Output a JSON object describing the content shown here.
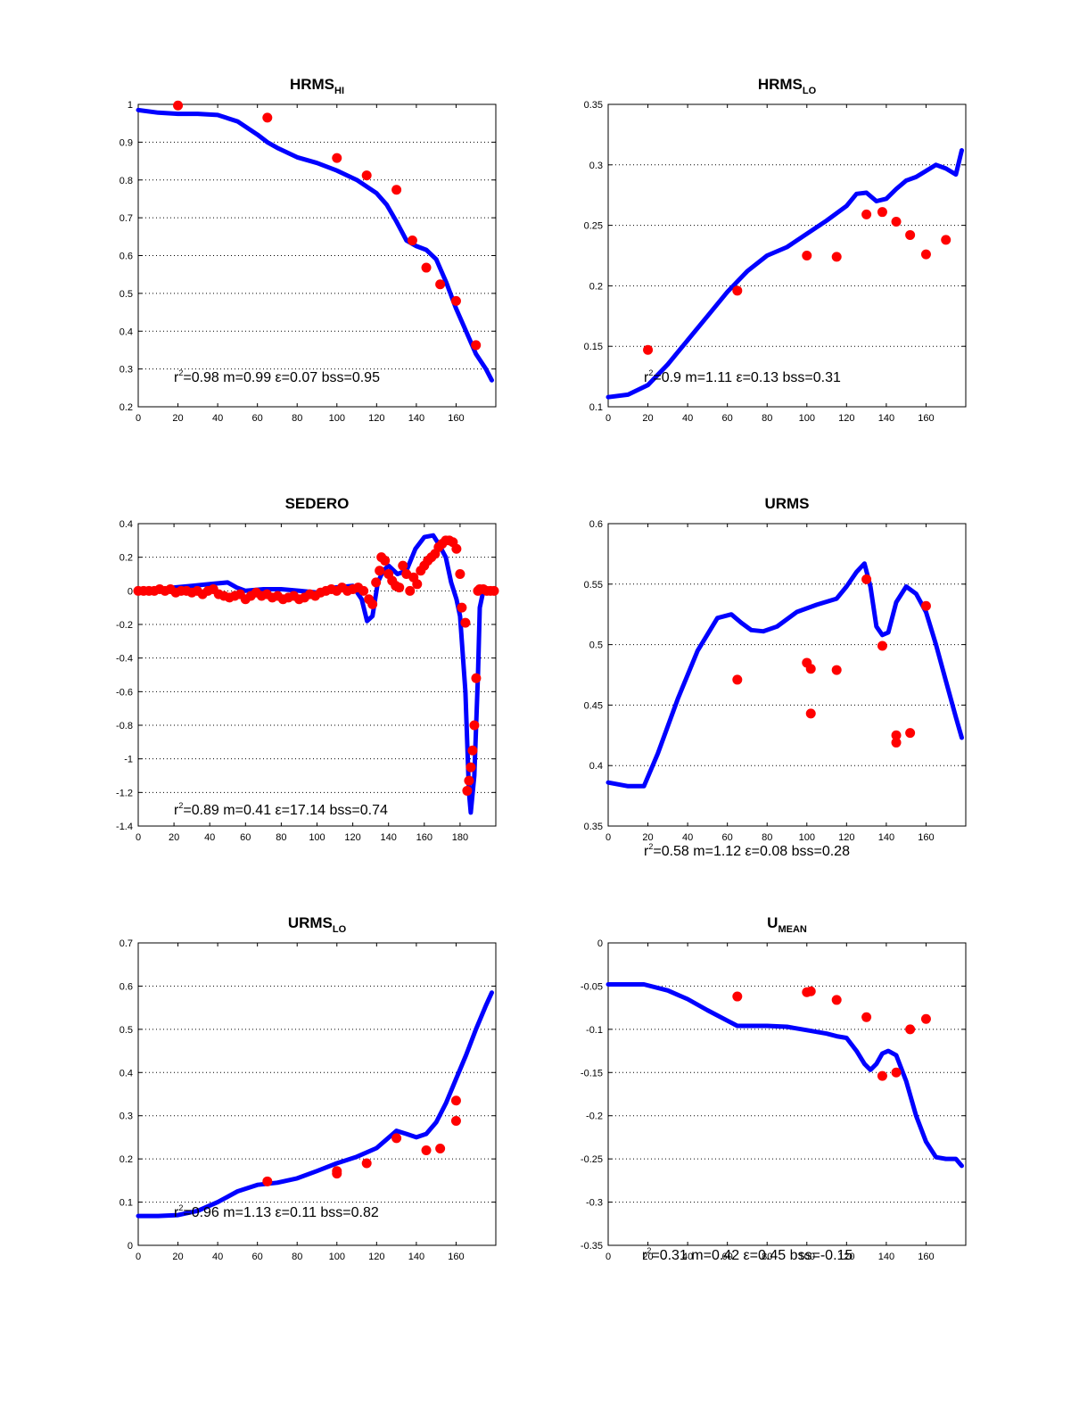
{
  "style": {
    "model_color": "#0000ff",
    "obs_color": "#ff0000",
    "grid_color": "#000000",
    "background": "#ffffff"
  },
  "chart_data": [
    {
      "type": "line",
      "title": "HRMS",
      "title_sub": "HI",
      "xlim": [
        0,
        180
      ],
      "ylim": [
        0.2,
        1
      ],
      "xticks": [
        "0",
        "20",
        "40",
        "60",
        "80",
        "100",
        "120",
        "140",
        "160"
      ],
      "yticks": [
        "0.2",
        "0.3",
        "0.4",
        "0.5",
        "0.6",
        "0.7",
        "0.8",
        "0.9",
        "1"
      ],
      "grid": "horizontal-dotted",
      "stats": {
        "r2_label": "r",
        "r2_sup": "2",
        "text": "=0.98 m=0.99 ε=0.07 bss=0.95"
      },
      "series": [
        {
          "kind": "model-line",
          "x": [
            0,
            10,
            20,
            30,
            40,
            50,
            60,
            65,
            70,
            80,
            90,
            100,
            110,
            120,
            125,
            130,
            135,
            140,
            145,
            150,
            155,
            160,
            165,
            170,
            175,
            178
          ],
          "y": [
            0.985,
            0.978,
            0.975,
            0.975,
            0.972,
            0.955,
            0.92,
            0.9,
            0.885,
            0.86,
            0.845,
            0.825,
            0.8,
            0.765,
            0.735,
            0.69,
            0.64,
            0.625,
            0.615,
            0.59,
            0.53,
            0.46,
            0.4,
            0.34,
            0.3,
            0.27
          ]
        },
        {
          "kind": "obs-points",
          "x": [
            20,
            65,
            100,
            115,
            130,
            138,
            145,
            152,
            160,
            170
          ],
          "y": [
            0.997,
            0.965,
            0.858,
            0.812,
            0.774,
            0.64,
            0.568,
            0.524,
            0.48,
            0.363
          ]
        }
      ]
    },
    {
      "type": "line",
      "title": "HRMS",
      "title_sub": "LO",
      "xlim": [
        0,
        180
      ],
      "ylim": [
        0.1,
        0.35
      ],
      "xticks": [
        "0",
        "20",
        "40",
        "60",
        "80",
        "100",
        "120",
        "140",
        "160"
      ],
      "yticks": [
        "0.1",
        "0.15",
        "0.2",
        "0.25",
        "0.3",
        "0.35"
      ],
      "grid": "horizontal-dotted",
      "stats": {
        "r2_label": "r",
        "r2_sup": "2",
        "text": "=0.9 m=1.11 ε=0.13 bss=0.31"
      },
      "series": [
        {
          "kind": "model-line",
          "x": [
            0,
            10,
            20,
            30,
            40,
            50,
            60,
            70,
            80,
            90,
            100,
            110,
            120,
            125,
            130,
            135,
            140,
            145,
            150,
            155,
            160,
            165,
            170,
            175,
            178
          ],
          "y": [
            0.108,
            0.11,
            0.118,
            0.135,
            0.155,
            0.175,
            0.195,
            0.212,
            0.225,
            0.232,
            0.243,
            0.254,
            0.266,
            0.276,
            0.277,
            0.27,
            0.272,
            0.28,
            0.287,
            0.29,
            0.295,
            0.3,
            0.297,
            0.292,
            0.312
          ]
        },
        {
          "kind": "obs-points",
          "x": [
            20,
            65,
            100,
            115,
            130,
            138,
            145,
            152,
            160,
            170
          ],
          "y": [
            0.147,
            0.196,
            0.225,
            0.224,
            0.259,
            0.261,
            0.253,
            0.242,
            0.226,
            0.238
          ]
        }
      ]
    },
    {
      "type": "line",
      "title": "SEDERO",
      "title_sub": "",
      "xlim": [
        0,
        200
      ],
      "ylim": [
        -1.4,
        0.4
      ],
      "xticks": [
        "0",
        "20",
        "40",
        "60",
        "80",
        "100",
        "120",
        "140",
        "160",
        "180"
      ],
      "yticks": [
        "-1.4",
        "-1.2",
        "-1",
        "-0.8",
        "-0.6",
        "-0.4",
        "-0.2",
        "0",
        "0.2",
        "0.4"
      ],
      "grid": "horizontal-dotted",
      "stats": {
        "r2_label": "r",
        "r2_sup": "2",
        "text": "=0.89 m=0.41 ε=17.14 bss=0.74"
      },
      "series": [
        {
          "kind": "model-line",
          "x": [
            0,
            10,
            20,
            30,
            40,
            50,
            55,
            60,
            70,
            80,
            90,
            100,
            110,
            120,
            125,
            128,
            131,
            134,
            137,
            140,
            145,
            150,
            155,
            160,
            165,
            168,
            172,
            175,
            178,
            180,
            183,
            185,
            186,
            188,
            190,
            191,
            193,
            195,
            200
          ],
          "y": [
            0,
            0,
            0.02,
            0.03,
            0.04,
            0.05,
            0.02,
            0,
            0.01,
            0.01,
            0,
            -0.01,
            0.02,
            0.03,
            -0.05,
            -0.18,
            -0.15,
            0.05,
            0.12,
            0.15,
            0.1,
            0.12,
            0.25,
            0.32,
            0.33,
            0.28,
            0.2,
            0.05,
            -0.05,
            -0.15,
            -0.6,
            -1.2,
            -1.32,
            -1.1,
            -0.5,
            -0.1,
            0,
            0,
            0
          ]
        },
        {
          "kind": "obs-points",
          "x": [
            0,
            3,
            6,
            9,
            12,
            15,
            18,
            21,
            24,
            27,
            30,
            33,
            36,
            39,
            42,
            45,
            48,
            51,
            54,
            57,
            60,
            63,
            66,
            69,
            72,
            75,
            78,
            81,
            84,
            87,
            90,
            93,
            96,
            99,
            102,
            105,
            108,
            111,
            114,
            117,
            120,
            123,
            126,
            129,
            131,
            133,
            135,
            136,
            138,
            140,
            142,
            144,
            146,
            148,
            150,
            152,
            154,
            156,
            158,
            160,
            162,
            164,
            166,
            168,
            170,
            172,
            174,
            176,
            178,
            180,
            181,
            183,
            184,
            185,
            186,
            187,
            188,
            189,
            190,
            191,
            193,
            195,
            197,
            199
          ],
          "y": [
            0,
            0,
            0,
            0,
            0.01,
            0,
            0.01,
            -0.01,
            0,
            0,
            -0.01,
            0,
            -0.02,
            0,
            0.01,
            -0.02,
            -0.03,
            -0.04,
            -0.03,
            -0.02,
            -0.05,
            -0.03,
            -0.01,
            -0.03,
            -0.02,
            -0.04,
            -0.03,
            -0.05,
            -0.04,
            -0.03,
            -0.05,
            -0.04,
            -0.02,
            -0.03,
            -0.01,
            0,
            0.01,
            0,
            0.02,
            0,
            0.01,
            0.02,
            0,
            -0.05,
            -0.08,
            0.05,
            0.12,
            0.2,
            0.18,
            0.1,
            0.06,
            0.03,
            0.02,
            0.15,
            0.1,
            0.0,
            0.08,
            0.04,
            0.12,
            0.15,
            0.18,
            0.2,
            0.22,
            0.26,
            0.28,
            0.3,
            0.3,
            0.29,
            0.25,
            0.1,
            -0.1,
            -0.19,
            -1.19,
            -1.13,
            -1.05,
            -0.95,
            -0.8,
            -0.52,
            0,
            0.01,
            0.01,
            0,
            0,
            0
          ]
        }
      ]
    },
    {
      "type": "line",
      "title": "URMS",
      "title_sub": "",
      "xlim": [
        0,
        180
      ],
      "ylim": [
        0.35,
        0.6
      ],
      "xticks": [
        "0",
        "20",
        "40",
        "60",
        "80",
        "100",
        "120",
        "140",
        "160"
      ],
      "yticks": [
        "0.35",
        "0.4",
        "0.45",
        "0.5",
        "0.55",
        "0.6"
      ],
      "grid": "horizontal-dotted",
      "stats": {
        "r2_label": "r",
        "r2_sup": "2",
        "text": "=0.58 m=1.12 ε=0.08 bss=0.28"
      },
      "series": [
        {
          "kind": "model-line",
          "x": [
            0,
            10,
            18,
            25,
            35,
            45,
            55,
            62,
            67,
            72,
            78,
            85,
            95,
            105,
            115,
            120,
            125,
            129,
            132,
            135,
            138,
            141,
            145,
            150,
            155,
            160,
            165,
            170,
            175,
            178
          ],
          "y": [
            0.386,
            0.383,
            0.383,
            0.41,
            0.455,
            0.495,
            0.522,
            0.525,
            0.518,
            0.512,
            0.511,
            0.515,
            0.527,
            0.533,
            0.538,
            0.548,
            0.56,
            0.567,
            0.548,
            0.515,
            0.508,
            0.51,
            0.535,
            0.548,
            0.542,
            0.527,
            0.5,
            0.47,
            0.44,
            0.423
          ]
        },
        {
          "kind": "obs-points",
          "x": [
            65,
            100,
            102,
            102,
            115,
            130,
            138,
            145,
            145,
            152,
            160
          ],
          "y": [
            0.471,
            0.485,
            0.48,
            0.443,
            0.479,
            0.554,
            0.499,
            0.425,
            0.419,
            0.427,
            0.532
          ]
        }
      ]
    },
    {
      "type": "line",
      "title": "URMS",
      "title_sub": "LO",
      "xlim": [
        0,
        180
      ],
      "ylim": [
        0,
        0.7
      ],
      "xticks": [
        "0",
        "20",
        "40",
        "60",
        "80",
        "100",
        "120",
        "140",
        "160"
      ],
      "yticks": [
        "0",
        "0.1",
        "0.2",
        "0.3",
        "0.4",
        "0.5",
        "0.6",
        "0.7"
      ],
      "grid": "horizontal-dotted",
      "stats": {
        "r2_label": "r",
        "r2_sup": "2",
        "text": "=0.96 m=1.13 ε=0.11 bss=0.82"
      },
      "series": [
        {
          "kind": "model-line",
          "x": [
            0,
            10,
            20,
            30,
            40,
            50,
            60,
            70,
            80,
            90,
            100,
            110,
            120,
            125,
            130,
            135,
            140,
            145,
            150,
            155,
            160,
            165,
            170,
            175,
            178
          ],
          "y": [
            0.068,
            0.068,
            0.07,
            0.08,
            0.1,
            0.125,
            0.14,
            0.145,
            0.155,
            0.172,
            0.19,
            0.205,
            0.225,
            0.245,
            0.265,
            0.258,
            0.25,
            0.258,
            0.285,
            0.33,
            0.385,
            0.44,
            0.5,
            0.555,
            0.585
          ]
        },
        {
          "kind": "obs-points",
          "x": [
            65,
            100,
            100,
            115,
            130,
            145,
            152,
            160,
            160
          ],
          "y": [
            0.148,
            0.172,
            0.166,
            0.19,
            0.248,
            0.22,
            0.224,
            0.335,
            0.288
          ]
        }
      ]
    },
    {
      "type": "line",
      "title": "U",
      "title_sub": "MEAN",
      "xlim": [
        0,
        180
      ],
      "ylim": [
        -0.35,
        0
      ],
      "xticks": [
        "0",
        "20",
        "40",
        "60",
        "80",
        "100",
        "120",
        "140",
        "160"
      ],
      "yticks": [
        "-0.35",
        "-0.3",
        "-0.25",
        "-0.2",
        "-0.15",
        "-0.1",
        "-0.05",
        "0"
      ],
      "grid": "horizontal-dotted",
      "stats": {
        "r2_label": "r",
        "r2_sup": "2",
        "text": "=0.31 m=0.42 ε=0.45 bss=-0.15"
      },
      "series": [
        {
          "kind": "model-line",
          "x": [
            0,
            10,
            18,
            30,
            40,
            50,
            60,
            65,
            70,
            80,
            90,
            100,
            110,
            115,
            120,
            125,
            129,
            132,
            135,
            138,
            141,
            145,
            150,
            155,
            160,
            165,
            170,
            175,
            178
          ],
          "y": [
            -0.048,
            -0.048,
            -0.048,
            -0.055,
            -0.065,
            -0.078,
            -0.09,
            -0.096,
            -0.096,
            -0.096,
            -0.097,
            -0.101,
            -0.105,
            -0.108,
            -0.11,
            -0.125,
            -0.14,
            -0.147,
            -0.14,
            -0.128,
            -0.125,
            -0.13,
            -0.16,
            -0.2,
            -0.23,
            -0.248,
            -0.25,
            -0.25,
            -0.258
          ]
        },
        {
          "kind": "obs-points",
          "x": [
            65,
            100,
            102,
            115,
            130,
            138,
            145,
            152,
            160
          ],
          "y": [
            -0.062,
            -0.057,
            -0.056,
            -0.066,
            -0.086,
            -0.154,
            -0.15,
            -0.1,
            -0.088
          ]
        }
      ]
    }
  ]
}
